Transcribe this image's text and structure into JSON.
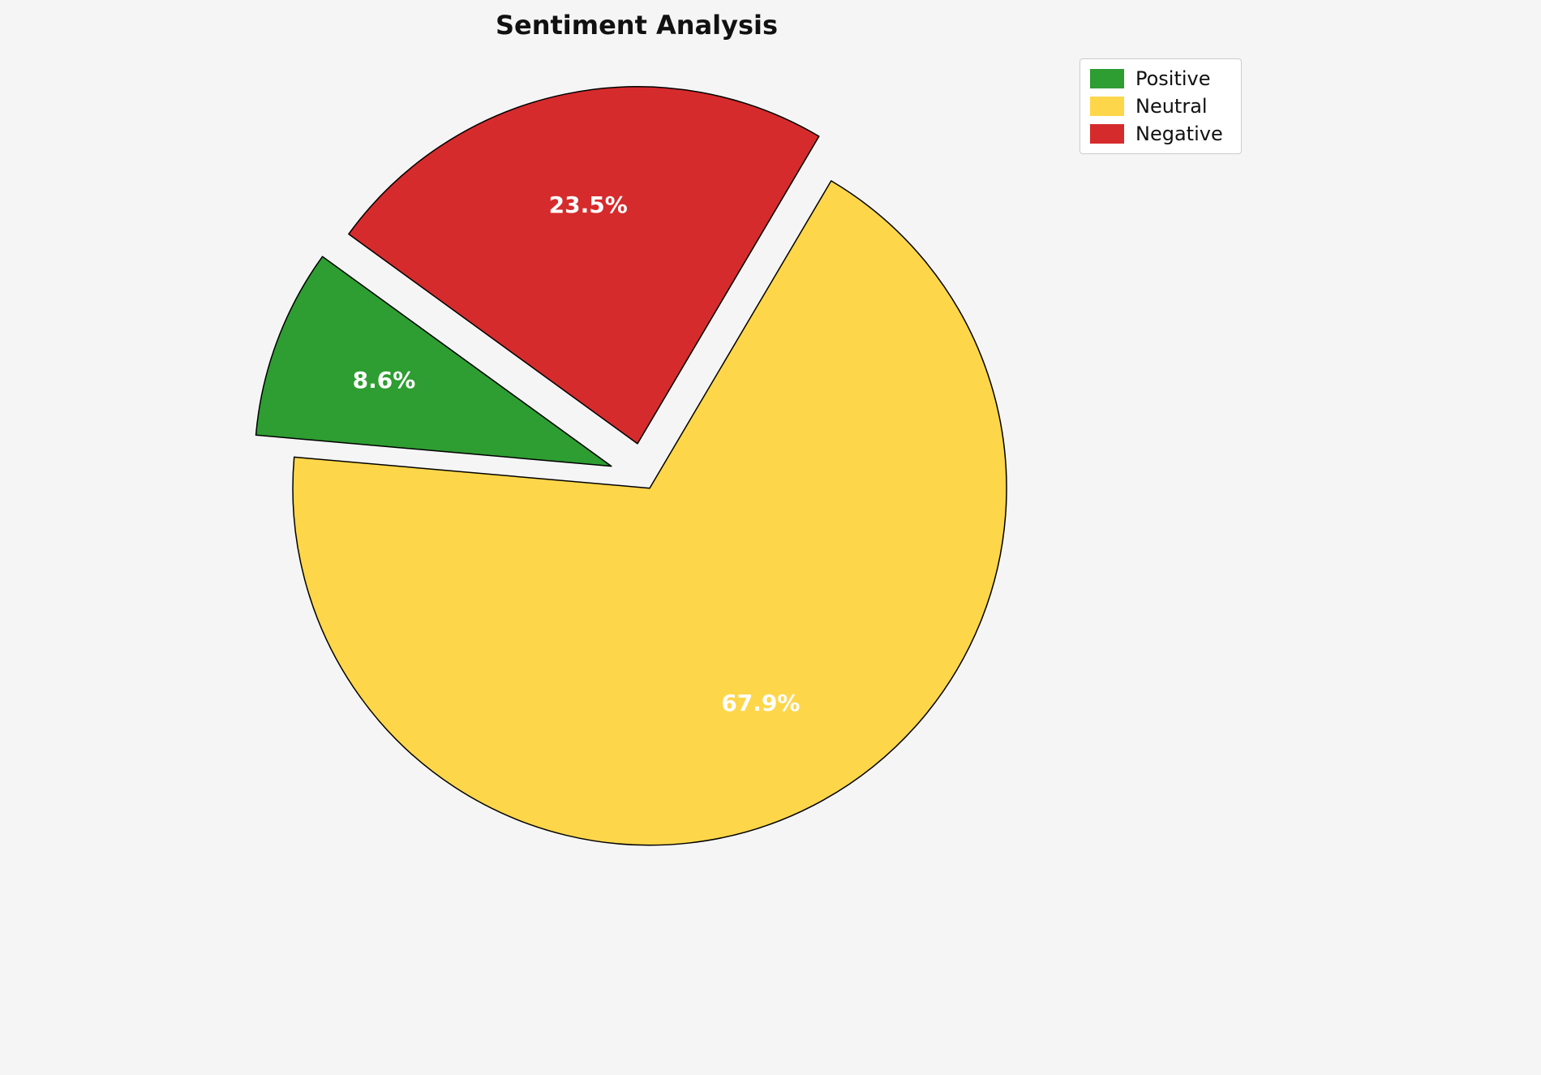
{
  "chart_data": {
    "type": "pie",
    "title": "Sentiment Analysis",
    "labels": [
      "Positive",
      "Neutral",
      "Negative"
    ],
    "values": [
      8.6,
      67.9,
      23.5
    ],
    "pct_labels": [
      "8.6%",
      "67.9%",
      "23.5%"
    ],
    "colors": [
      "#2e9d32",
      "#fdd64a",
      "#d62b2c"
    ],
    "edge_color": "#000000",
    "pct_label_color": "#ffffff",
    "legend_position": "upper right",
    "start_angle_deg": 175,
    "direction": "clockwise",
    "order": [
      "Positive",
      "Negative",
      "Neutral"
    ],
    "explode": [
      0.1,
      0.03,
      0.1
    ],
    "pct_distance": 0.68,
    "background": "#f5f5f5"
  },
  "legend": {
    "entries": [
      {
        "label": "Positive",
        "color": "#2e9d32"
      },
      {
        "label": "Neutral",
        "color": "#fdd64a"
      },
      {
        "label": "Negative",
        "color": "#d62b2c"
      }
    ]
  }
}
